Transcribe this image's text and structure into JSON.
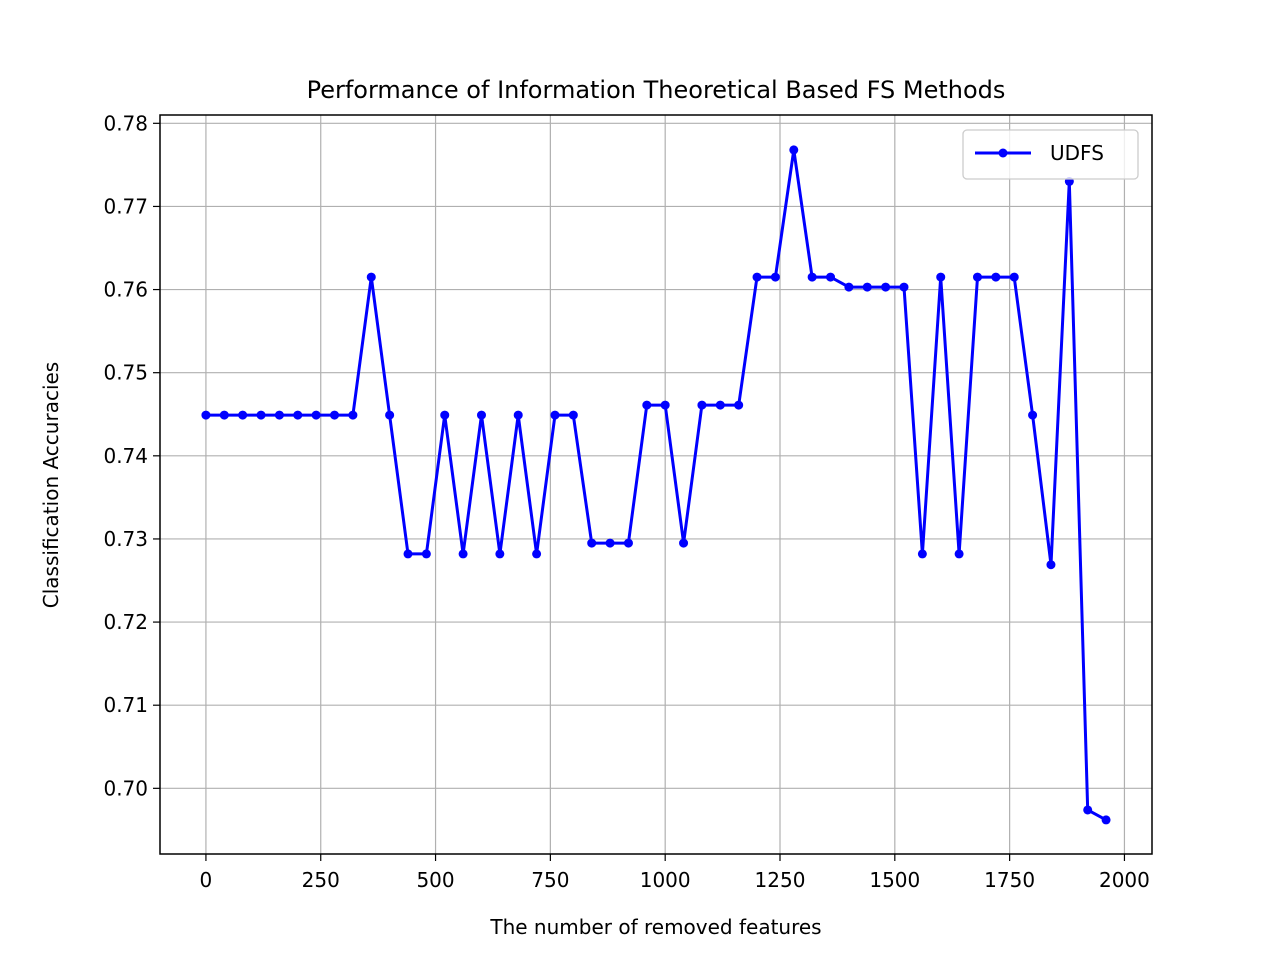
{
  "chart_data": {
    "type": "line",
    "title": "Performance of Information Theoretical Based FS Methods",
    "xlabel": "The number of removed features",
    "ylabel": "Classification Accuracies",
    "xlim": [
      -100,
      2060
    ],
    "ylim": [
      0.6921,
      0.781
    ],
    "xticks": [
      0,
      250,
      500,
      750,
      1000,
      1250,
      1500,
      1750,
      2000
    ],
    "xtick_labels": [
      "0",
      "250",
      "500",
      "750",
      "1000",
      "1250",
      "1500",
      "1750",
      "2000"
    ],
    "yticks": [
      0.7,
      0.71,
      0.72,
      0.73,
      0.74,
      0.75,
      0.76,
      0.77,
      0.78
    ],
    "ytick_labels": [
      "0.70",
      "0.71",
      "0.72",
      "0.73",
      "0.74",
      "0.75",
      "0.76",
      "0.77",
      "0.78"
    ],
    "grid": true,
    "legend_position": "top-right",
    "series": [
      {
        "name": "UDFS",
        "color": "#0000ff",
        "marker": "circle",
        "x": [
          0,
          40,
          80,
          120,
          160,
          200,
          240,
          280,
          320,
          360,
          400,
          440,
          480,
          520,
          560,
          600,
          640,
          680,
          720,
          760,
          800,
          840,
          880,
          920,
          960,
          1000,
          1040,
          1080,
          1120,
          1160,
          1200,
          1240,
          1280,
          1320,
          1360,
          1400,
          1440,
          1480,
          1520,
          1560,
          1600,
          1640,
          1680,
          1720,
          1760,
          1800,
          1840,
          1880,
          1920,
          1960
        ],
        "y": [
          0.7449,
          0.7449,
          0.7449,
          0.7449,
          0.7449,
          0.7449,
          0.7449,
          0.7449,
          0.7449,
          0.7615,
          0.7449,
          0.7282,
          0.7282,
          0.7449,
          0.7282,
          0.7449,
          0.7282,
          0.7449,
          0.7282,
          0.7449,
          0.7449,
          0.7295,
          0.7295,
          0.7295,
          0.7461,
          0.7461,
          0.7295,
          0.7461,
          0.7461,
          0.7461,
          0.7615,
          0.7615,
          0.7768,
          0.7615,
          0.7615,
          0.7603,
          0.7603,
          0.7603,
          0.7603,
          0.7282,
          0.7615,
          0.7282,
          0.7615,
          0.7615,
          0.7615,
          0.7449,
          0.7269,
          0.773,
          0.6974,
          0.6962
        ]
      }
    ]
  }
}
